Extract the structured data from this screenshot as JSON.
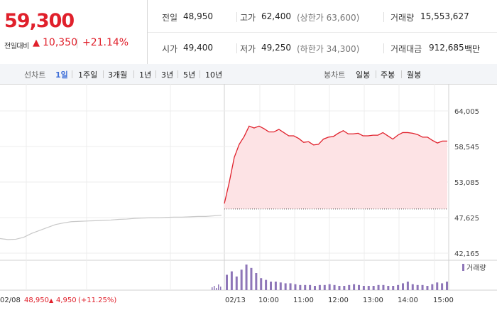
{
  "quote": {
    "price": "59,300",
    "change_label": "전일대비",
    "change_arrow": "▲",
    "change_amount": "10,350",
    "change_pct": "+21.14%"
  },
  "summary": {
    "prev_close_label": "전일",
    "prev_close": "48,950",
    "high_label": "고가",
    "high": "62,400",
    "upper_limit": "(상한가 63,600)",
    "volume_label": "거래량",
    "volume": "15,553,627",
    "open_label": "시가",
    "open": "49,400",
    "low_label": "저가",
    "low": "49,250",
    "lower_limit": "(하한가 34,300)",
    "value_label": "거래대금",
    "value": "912,685",
    "value_unit": "백만"
  },
  "toolbar": {
    "line_chart_label": "선차트",
    "ranges": [
      "1일",
      "1주일",
      "3개월",
      "1년",
      "3년",
      "5년",
      "10년"
    ],
    "active_range": "1일",
    "candle_chart_label": "봉차트",
    "candle_ranges": [
      "일봉",
      "주봉",
      "월봉"
    ]
  },
  "colors": {
    "up": "#e0202b",
    "area_fill": "#fde3e5",
    "prev_day_line": "#c8c8c8",
    "volume_bar": "#8e76b8",
    "active_tab": "#3f6fd8"
  },
  "chart_data": {
    "type": "line",
    "y_ticks": [
      "64,005",
      "58,545",
      "53,085",
      "47,625",
      "42,165"
    ],
    "y_tick_values": [
      64005,
      58545,
      53085,
      47625,
      42165
    ],
    "ylim": [
      42165,
      64005
    ],
    "prev_day_x_label": "02/08",
    "prev_day_info": {
      "close": "48,950",
      "arrow": "▲",
      "change": "4,950",
      "pct": "(+11.25%)"
    },
    "today_x_label": "02/13",
    "x_ticks": [
      "10:00",
      "11:00",
      "12:00",
      "13:00",
      "14:00",
      "15:00"
    ],
    "reference_price": 48950,
    "prev_day_series": {
      "name": "02/08",
      "values": [
        44400,
        44250,
        44300,
        44600,
        45200,
        45650,
        46100,
        46550,
        46800,
        47000,
        47050,
        47100,
        47150,
        47200,
        47250,
        47350,
        47400,
        47500,
        47550,
        47600,
        47600,
        47650,
        47700,
        47700,
        47750,
        47800,
        47800,
        47900,
        48000
      ]
    },
    "today_series": {
      "name": "02/13",
      "times": [
        "09:00",
        "09:05",
        "09:10",
        "09:15",
        "09:20",
        "09:25",
        "09:30",
        "09:35",
        "09:40",
        "09:45",
        "09:50",
        "09:55",
        "10:00",
        "10:10",
        "10:20",
        "10:30",
        "10:40",
        "10:50",
        "11:00",
        "11:10",
        "11:20",
        "11:30",
        "11:40",
        "11:50",
        "12:00",
        "12:10",
        "12:20",
        "12:30",
        "12:40",
        "12:50",
        "13:00",
        "13:10",
        "13:20",
        "13:30",
        "13:40",
        "13:50",
        "14:00",
        "14:10",
        "14:20",
        "14:30",
        "14:40",
        "14:50",
        "15:00",
        "15:10",
        "15:20",
        "15:30"
      ],
      "values": [
        49700,
        53200,
        56800,
        58800,
        60200,
        61600,
        61300,
        61800,
        61200,
        60700,
        60900,
        61100,
        60600,
        60300,
        60100,
        59700,
        59300,
        59200,
        58700,
        59000,
        59600,
        59900,
        60200,
        60500,
        60900,
        60600,
        60400,
        60500,
        60300,
        60100,
        60200,
        60400,
        60600,
        60100,
        59800,
        60200,
        60600,
        60800,
        60500,
        60300,
        60100,
        59900,
        59400,
        59200,
        59300,
        59300
      ]
    },
    "volume_legend": "거래량",
    "volume_values": [
      18,
      22,
      16,
      24,
      30,
      26,
      20,
      14,
      12,
      10,
      10,
      9,
      8,
      8,
      7,
      6,
      6,
      6,
      5,
      6,
      6,
      7,
      6,
      5,
      5,
      6,
      7,
      6,
      5,
      5,
      5,
      6,
      6,
      5,
      5,
      6,
      8,
      10,
      7,
      6,
      6,
      5,
      7,
      9,
      8,
      10
    ]
  }
}
